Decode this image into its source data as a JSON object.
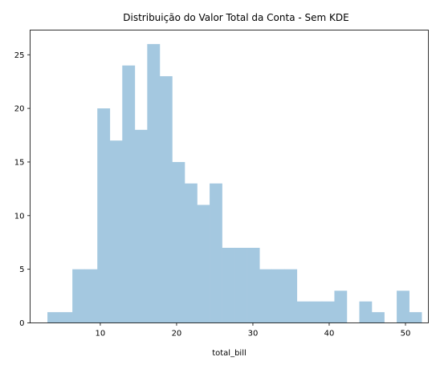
{
  "chart_data": {
    "type": "bar",
    "title": "Distribuição do Valor Total da Conta - Sem KDE",
    "xlabel": "total_bill",
    "ylabel": "",
    "xlim": [
      0.8,
      53.0
    ],
    "ylim": [
      0,
      27.3
    ],
    "xticks": [
      10,
      20,
      30,
      40,
      50
    ],
    "yticks": [
      0,
      5,
      10,
      15,
      20,
      25
    ],
    "bar_color": "#a4c8e0",
    "grid": false,
    "bins": [
      {
        "x0": 3.07,
        "x1": 4.71,
        "value": 1
      },
      {
        "x0": 4.71,
        "x1": 6.34,
        "value": 1
      },
      {
        "x0": 6.34,
        "x1": 7.98,
        "value": 5
      },
      {
        "x0": 7.98,
        "x1": 9.61,
        "value": 5
      },
      {
        "x0": 9.61,
        "x1": 11.25,
        "value": 20
      },
      {
        "x0": 11.25,
        "x1": 12.88,
        "value": 17
      },
      {
        "x0": 12.88,
        "x1": 14.52,
        "value": 24
      },
      {
        "x0": 14.52,
        "x1": 16.15,
        "value": 18
      },
      {
        "x0": 16.15,
        "x1": 17.79,
        "value": 26
      },
      {
        "x0": 17.79,
        "x1": 19.42,
        "value": 23
      },
      {
        "x0": 19.42,
        "x1": 21.06,
        "value": 15
      },
      {
        "x0": 21.06,
        "x1": 22.69,
        "value": 13
      },
      {
        "x0": 22.69,
        "x1": 24.33,
        "value": 11
      },
      {
        "x0": 24.33,
        "x1": 25.96,
        "value": 13
      },
      {
        "x0": 25.96,
        "x1": 27.6,
        "value": 7
      },
      {
        "x0": 27.6,
        "x1": 29.23,
        "value": 7
      },
      {
        "x0": 29.23,
        "x1": 30.87,
        "value": 7
      },
      {
        "x0": 30.87,
        "x1": 32.5,
        "value": 5
      },
      {
        "x0": 32.5,
        "x1": 34.14,
        "value": 5
      },
      {
        "x0": 34.14,
        "x1": 35.77,
        "value": 5
      },
      {
        "x0": 35.77,
        "x1": 37.41,
        "value": 2
      },
      {
        "x0": 37.41,
        "x1": 39.04,
        "value": 2
      },
      {
        "x0": 39.04,
        "x1": 40.68,
        "value": 2
      },
      {
        "x0": 40.68,
        "x1": 42.31,
        "value": 3
      },
      {
        "x0": 42.31,
        "x1": 43.95,
        "value": 0
      },
      {
        "x0": 43.95,
        "x1": 45.58,
        "value": 2
      },
      {
        "x0": 45.58,
        "x1": 47.22,
        "value": 1
      },
      {
        "x0": 47.22,
        "x1": 48.85,
        "value": 0
      },
      {
        "x0": 48.85,
        "x1": 50.49,
        "value": 3
      },
      {
        "x0": 50.49,
        "x1": 52.12,
        "value": 1
      }
    ]
  }
}
